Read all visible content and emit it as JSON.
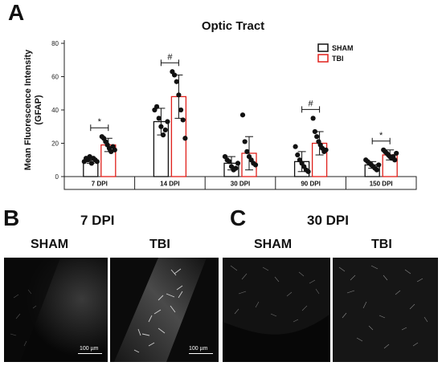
{
  "panels": {
    "a": "A",
    "b": "B",
    "c": "C"
  },
  "chart_data": {
    "type": "bar",
    "title": "Optic Tract",
    "ylabel": "Mean Fluorescence Intensity (GFAP)",
    "ylabel_lines": [
      "Mean Fluorescence Intensity",
      "(GFAP)"
    ],
    "ylim": [
      0,
      80
    ],
    "yticks": [
      "0",
      "20",
      "40",
      "60",
      "80"
    ],
    "categories": [
      "7 DPI",
      "14 DPI",
      "30 DPI",
      "90 DPI",
      "150 DPI"
    ],
    "legend_position": "top-right",
    "grid": false,
    "series": [
      {
        "name": "SHAM",
        "color": "#111111",
        "values": [
          10,
          33,
          8,
          9,
          7
        ],
        "errors": [
          2,
          8,
          4,
          6,
          2
        ],
        "points": [
          [
            9,
            11,
            10,
            12,
            8,
            11,
            10,
            9
          ],
          [
            40,
            42,
            35,
            30,
            25,
            28,
            33
          ],
          [
            12,
            10,
            9,
            6,
            4,
            5,
            8
          ],
          [
            18,
            13,
            10,
            8,
            6,
            4,
            3
          ],
          [
            10,
            9,
            8,
            7,
            6,
            5,
            4,
            7
          ]
        ]
      },
      {
        "name": "TBI",
        "color": "#e0201b",
        "values": [
          19,
          48,
          14,
          20,
          13
        ],
        "errors": [
          4,
          13,
          10,
          7,
          3
        ],
        "points": [
          [
            24,
            23,
            21,
            19,
            17,
            15,
            18,
            16
          ],
          [
            63,
            61,
            57,
            49,
            40,
            34,
            23
          ],
          [
            37,
            21,
            15,
            12,
            10,
            8,
            7
          ],
          [
            35,
            27,
            24,
            21,
            19,
            17,
            15,
            16
          ],
          [
            16,
            15,
            14,
            13,
            12,
            11,
            12,
            10,
            14
          ]
        ]
      }
    ],
    "significance": [
      {
        "category": "7 DPI",
        "marker": "*"
      },
      {
        "category": "14 DPI",
        "marker": "#"
      },
      {
        "category": "90 DPI",
        "marker": "#"
      },
      {
        "category": "150 DPI",
        "marker": "*"
      }
    ]
  },
  "micrographs": {
    "b": {
      "heading": "7 DPI",
      "images": [
        {
          "label": "SHAM",
          "scale_bar": "100 µm"
        },
        {
          "label": "TBI",
          "scale_bar": "100 µm"
        }
      ]
    },
    "c": {
      "heading": "30 DPI",
      "images": [
        {
          "label": "SHAM"
        },
        {
          "label": "TBI"
        }
      ]
    }
  }
}
